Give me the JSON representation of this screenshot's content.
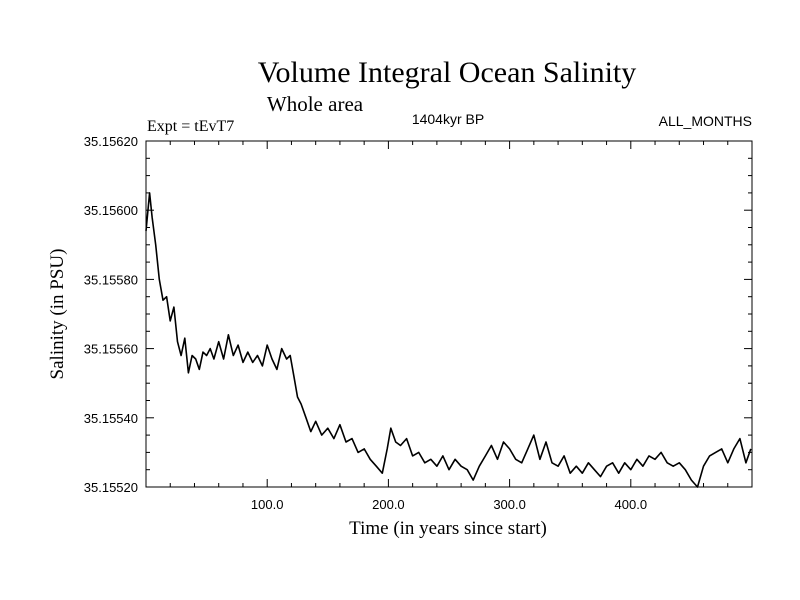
{
  "chart_data": {
    "type": "line",
    "title": "Volume Integral Ocean Salinity",
    "subtitle": "Whole area",
    "experiment_label": "Expt = tEvT7",
    "period_label": "1404kyr BP",
    "months_label": "ALL_MONTHS",
    "xlabel": "Time (in years since start)",
    "ylabel": "Salinity (in PSU)",
    "xlim": [
      0,
      500
    ],
    "ylim": [
      35.1552,
      35.1562
    ],
    "x_ticks": [
      100,
      200,
      300,
      400
    ],
    "x_tick_labels": [
      "100.0",
      "200.0",
      "300.0",
      "400.0"
    ],
    "y_ticks": [
      35.1552,
      35.1554,
      35.1556,
      35.1558,
      35.156,
      35.1562
    ],
    "y_tick_labels": [
      "35.15520",
      "35.15540",
      "35.15560",
      "35.15580",
      "35.15600",
      "35.15620"
    ],
    "grid": false,
    "line_color": "#000000",
    "series": [
      {
        "name": "Salinity",
        "x": [
          0,
          3,
          5,
          8,
          11,
          14,
          17,
          20,
          23,
          26,
          29,
          32,
          35,
          38,
          41,
          44,
          47,
          50,
          53,
          56,
          60,
          64,
          68,
          72,
          76,
          80,
          84,
          88,
          92,
          96,
          100,
          104,
          108,
          112,
          116,
          119,
          122,
          125,
          128,
          132,
          136,
          140,
          145,
          150,
          155,
          160,
          165,
          170,
          175,
          180,
          185,
          190,
          195,
          199,
          202,
          206,
          210,
          215,
          220,
          225,
          230,
          235,
          240,
          245,
          250,
          255,
          260,
          265,
          270,
          275,
          280,
          285,
          290,
          295,
          300,
          305,
          310,
          315,
          320,
          325,
          330,
          335,
          340,
          345,
          350,
          355,
          360,
          365,
          370,
          375,
          380,
          385,
          390,
          395,
          400,
          405,
          410,
          415,
          420,
          425,
          430,
          435,
          440,
          445,
          450,
          455,
          460,
          465,
          470,
          475,
          480,
          485,
          490,
          495,
          499
        ],
        "y": [
          35.15594,
          35.15605,
          35.15598,
          35.1559,
          35.1558,
          35.15574,
          35.15575,
          35.15568,
          35.15572,
          35.15562,
          35.15558,
          35.15563,
          35.15553,
          35.15558,
          35.15557,
          35.15554,
          35.15559,
          35.15558,
          35.1556,
          35.15557,
          35.15562,
          35.15557,
          35.15564,
          35.15558,
          35.15561,
          35.15556,
          35.15559,
          35.15556,
          35.15558,
          35.15555,
          35.15561,
          35.15557,
          35.15554,
          35.1556,
          35.15557,
          35.15558,
          35.15552,
          35.15546,
          35.15544,
          35.1554,
          35.15536,
          35.15539,
          35.15535,
          35.15537,
          35.15534,
          35.15538,
          35.15533,
          35.15534,
          35.1553,
          35.15531,
          35.15528,
          35.15526,
          35.15524,
          35.15531,
          35.15537,
          35.15533,
          35.15532,
          35.15534,
          35.15529,
          35.1553,
          35.15527,
          35.15528,
          35.15526,
          35.15529,
          35.15525,
          35.15528,
          35.15526,
          35.15525,
          35.15522,
          35.15526,
          35.15529,
          35.15532,
          35.15528,
          35.15533,
          35.15531,
          35.15528,
          35.15527,
          35.15531,
          35.15535,
          35.15528,
          35.15533,
          35.15527,
          35.15526,
          35.15529,
          35.15524,
          35.15526,
          35.15524,
          35.15527,
          35.15525,
          35.15523,
          35.15526,
          35.15527,
          35.15524,
          35.15527,
          35.15525,
          35.15528,
          35.15526,
          35.15529,
          35.15528,
          35.1553,
          35.15527,
          35.15526,
          35.15527,
          35.15525,
          35.15522,
          35.1552,
          35.15526,
          35.15529,
          35.1553,
          35.15531,
          35.15527,
          35.15531,
          35.15534,
          35.15527,
          35.15531
        ]
      }
    ]
  }
}
